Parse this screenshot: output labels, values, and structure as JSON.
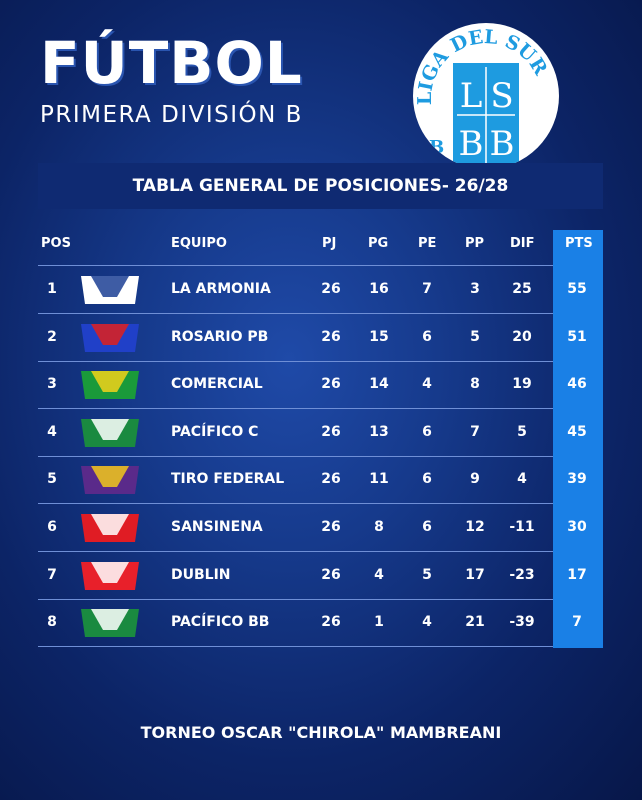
{
  "header": {
    "title": "FÚTBOL",
    "subtitle": "PRIMERA DIVISIÓN B",
    "logo_text": "LIGA DEL SUR BAHÍA BLANCA LSBB"
  },
  "table_title": "TABLA GENERAL DE POSICIONES- 26/28",
  "columns": {
    "pos": "POS",
    "team": "EQUIPO",
    "pj": "PJ",
    "pg": "PG",
    "pe": "PE",
    "pp": "PP",
    "dif": "DIF",
    "pts": "PTS"
  },
  "rows": [
    {
      "pos": "1",
      "team": "LA ARMONIA",
      "pj": "26",
      "pg": "16",
      "pe": "7",
      "pp": "3",
      "dif": "25",
      "pts": "55",
      "crest": [
        "#ffffff",
        "#1c3f94"
      ]
    },
    {
      "pos": "2",
      "team": "ROSARIO PB",
      "pj": "26",
      "pg": "15",
      "pe": "6",
      "pp": "5",
      "dif": "20",
      "pts": "51",
      "crest": [
        "#2040c8",
        "#e0201c"
      ]
    },
    {
      "pos": "3",
      "team": "COMERCIAL",
      "pj": "26",
      "pg": "14",
      "pe": "4",
      "pp": "8",
      "dif": "19",
      "pts": "46",
      "crest": [
        "#1a9a3a",
        "#f2d21a"
      ]
    },
    {
      "pos": "4",
      "team": "PACÍFICO C",
      "pj": "26",
      "pg": "13",
      "pe": "6",
      "pp": "7",
      "dif": "5",
      "pts": "45",
      "crest": [
        "#1a8a40",
        "#ffffff"
      ]
    },
    {
      "pos": "5",
      "team": "TIRO FEDERAL",
      "pj": "26",
      "pg": "11",
      "pe": "6",
      "pp": "9",
      "dif": "4",
      "pts": "39",
      "crest": [
        "#5a2a8a",
        "#f2c81a"
      ]
    },
    {
      "pos": "6",
      "team": "SANSINENA",
      "pj": "26",
      "pg": "8",
      "pe": "6",
      "pp": "12",
      "dif": "-11",
      "pts": "30",
      "crest": [
        "#e01c24",
        "#ffffff"
      ]
    },
    {
      "pos": "7",
      "team": "DUBLIN",
      "pj": "26",
      "pg": "4",
      "pe": "5",
      "pp": "17",
      "dif": "-23",
      "pts": "17",
      "crest": [
        "#e8202a",
        "#ffffff"
      ]
    },
    {
      "pos": "8",
      "team": "PACÍFICO BB",
      "pj": "26",
      "pg": "1",
      "pe": "4",
      "pp": "21",
      "dif": "-39",
      "pts": "7",
      "crest": [
        "#1a8a40",
        "#ffffff"
      ]
    }
  ],
  "footer": "TORNEO OSCAR \"CHIROLA\" MAMBREANI",
  "colors": {
    "background": "#0c2466",
    "band": "#0f2a72",
    "pts_column": "#1a80e6",
    "logo_blue": "#1e9be0"
  }
}
